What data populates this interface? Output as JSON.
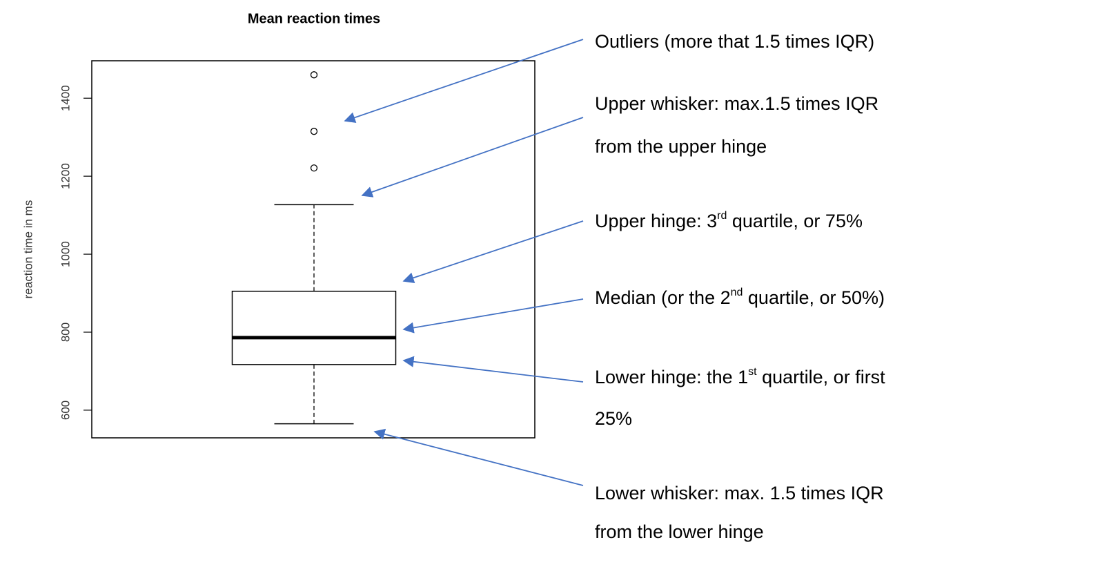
{
  "chart_data": {
    "type": "box",
    "title": "Mean reaction times",
    "ylabel": "reaction time in ms",
    "ylim": [
      529,
      1496
    ],
    "yticks": [
      600,
      800,
      1000,
      1200,
      1400
    ],
    "stats": {
      "whisker_low": 565,
      "q1": 717,
      "median": 786,
      "q3": 905,
      "whisker_high": 1127
    },
    "outliers": [
      1221,
      1315,
      1460
    ],
    "annotations": [
      {
        "lines": [
          [
            "Outliers (more that 1.5 times IQR)"
          ]
        ]
      },
      {
        "lines": [
          [
            "Upper whisker:  max.1.5 times IQR"
          ],
          [
            "from the upper hinge"
          ]
        ]
      },
      {
        "lines": [
          [
            "Upper hinge: 3",
            "rd",
            " quartile, or 75%"
          ]
        ]
      },
      {
        "lines": [
          [
            "Median (or the 2",
            "nd",
            " quartile, or 50%)"
          ]
        ]
      },
      {
        "lines": [
          [
            "Lower hinge: the  1",
            "st",
            " quartile, or first"
          ],
          [
            "25%"
          ]
        ]
      },
      {
        "lines": [
          [
            "Lower whisker: max. 1.5 times IQR"
          ],
          [
            "from the lower hinge"
          ]
        ]
      }
    ]
  }
}
